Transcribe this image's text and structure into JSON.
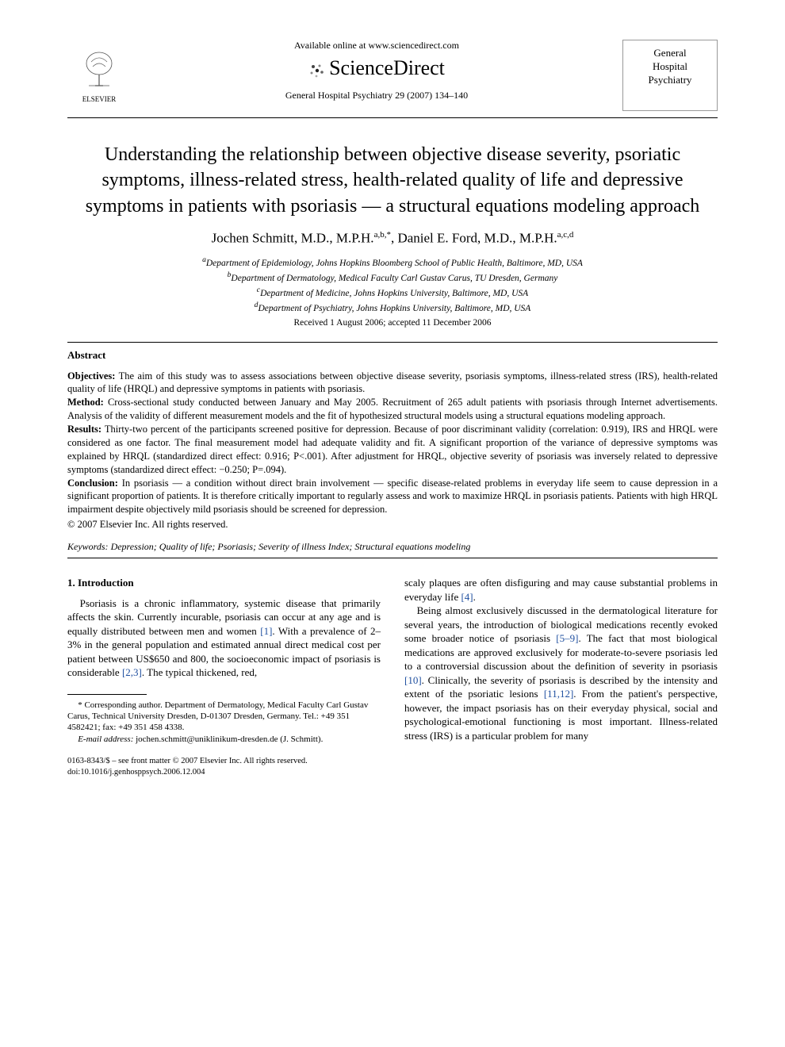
{
  "header": {
    "publisher_name": "ELSEVIER",
    "available_online": "Available online at www.sciencedirect.com",
    "platform_name": "ScienceDirect",
    "citation_line": "General Hospital Psychiatry 29 (2007) 134–140",
    "journal_box_line1": "General",
    "journal_box_line2": "Hospital",
    "journal_box_line3": "Psychiatry"
  },
  "title": "Understanding the relationship between objective disease severity, psoriatic symptoms, illness-related stress, health-related quality of life and depressive symptoms in patients with psoriasis — a structural equations modeling approach",
  "authors_html": "Jochen Schmitt, M.D., M.P.H.<sup>a,b,*</sup>, Daniel E. Ford, M.D., M.P.H.<sup>a,c,d</sup>",
  "affiliations": [
    "<sup>a</sup>Department of Epidemiology, Johns Hopkins Bloomberg School of Public Health, Baltimore, MD, USA",
    "<sup>b</sup>Department of Dermatology, Medical Faculty Carl Gustav Carus, TU Dresden, Germany",
    "<sup>c</sup>Department of Medicine, Johns Hopkins University, Baltimore, MD, USA",
    "<sup>d</sup>Department of Psychiatry, Johns Hopkins University, Baltimore, MD, USA"
  ],
  "dates": "Received 1 August 2006; accepted 11 December 2006",
  "abstract": {
    "header": "Abstract",
    "objectives_label": "Objectives:",
    "objectives": " The aim of this study was to assess associations between objective disease severity, psoriasis symptoms, illness-related stress (IRS), health-related quality of life (HRQL) and depressive symptoms in patients with psoriasis.",
    "method_label": "Method:",
    "method": " Cross-sectional study conducted between January and May 2005. Recruitment of 265 adult patients with psoriasis through Internet advertisements. Analysis of the validity of different measurement models and the fit of hypothesized structural models using a structural equations modeling approach.",
    "results_label": "Results:",
    "results": " Thirty-two percent of the participants screened positive for depression. Because of poor discriminant validity (correlation: 0.919), IRS and HRQL were considered as one factor. The final measurement model had adequate validity and fit. A significant proportion of the variance of depressive symptoms was explained by HRQL (standardized direct effect: 0.916; P<.001). After adjustment for HRQL, objective severity of psoriasis was inversely related to depressive symptoms (standardized direct effect: −0.250; P=.094).",
    "conclusion_label": "Conclusion:",
    "conclusion": " In psoriasis — a condition without direct brain involvement — specific disease-related problems in everyday life seem to cause depression in a significant proportion of patients. It is therefore critically important to regularly assess and work to maximize HRQL in psoriasis patients. Patients with high HRQL impairment despite objectively mild psoriasis should be screened for depression.",
    "copyright": "© 2007 Elsevier Inc. All rights reserved."
  },
  "keywords_label": "Keywords:",
  "keywords": " Depression; Quality of life; Psoriasis; Severity of illness Index; Structural equations modeling",
  "body": {
    "section_heading": "1. Introduction",
    "col1_p1": "Psoriasis is a chronic inflammatory, systemic disease that primarily affects the skin. Currently incurable, psoriasis can occur at any age and is equally distributed between men and women [1]. With a prevalence of 2–3% in the general population and estimated annual direct medical cost per patient between US$650 and 800, the socioeconomic impact of psoriasis is considerable [2,3]. The typical thickened, red,",
    "col2_p1": "scaly plaques are often disfiguring and may cause substantial problems in everyday life [4].",
    "col2_p2": "Being almost exclusively discussed in the dermatological literature for several years, the introduction of biological medications recently evoked some broader notice of psoriasis [5–9]. The fact that most biological medications are approved exclusively for moderate-to-severe psoriasis led to a controversial discussion about the definition of severity in psoriasis [10]. Clinically, the severity of psoriasis is described by the intensity and extent of the psoriatic lesions [11,12]. From the patient's perspective, however, the impact psoriasis has on their everyday physical, social and psychological-emotional functioning is most important. Illness-related stress (IRS) is a particular problem for many"
  },
  "footnotes": {
    "corr": "* Corresponding author. Department of Dermatology, Medical Faculty Carl Gustav Carus, Technical University Dresden, D-01307 Dresden, Germany. Tel.: +49 351 4582421; fax: +49 351 458 4338.",
    "email_label": "E-mail address:",
    "email": " jochen.schmitt@uniklinikum-dresden.de (J. Schmitt)."
  },
  "footer": {
    "line1": "0163-8343/$ – see front matter © 2007 Elsevier Inc. All rights reserved.",
    "line2": "doi:10.1016/j.genhosppsych.2006.12.004"
  },
  "colors": {
    "text": "#000000",
    "background": "#ffffff",
    "link": "#2050a0",
    "rule": "#000000"
  }
}
